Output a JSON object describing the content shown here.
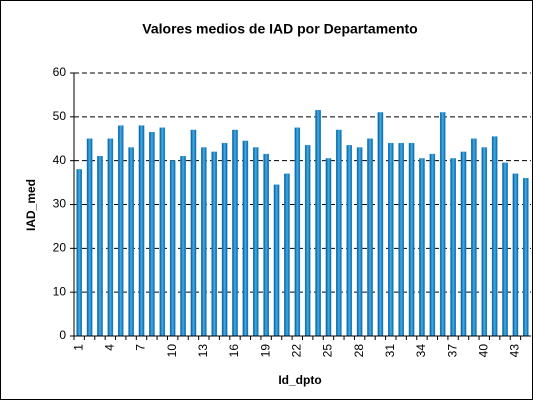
{
  "chart_data": {
    "type": "bar",
    "title": "Valores medios de IAD por Departamento",
    "xlabel": "Id_dpto",
    "ylabel": "IAD_med",
    "categories": [
      "1",
      null,
      null,
      "4",
      null,
      null,
      "7",
      null,
      null,
      "10",
      null,
      null,
      "13",
      null,
      null,
      "16",
      null,
      null,
      "19",
      null,
      null,
      "22",
      null,
      null,
      "25",
      null,
      null,
      "28",
      null,
      null,
      "31",
      null,
      null,
      "34",
      null,
      null,
      "37",
      null,
      null,
      "40",
      null,
      null,
      "43",
      null
    ],
    "values": [
      38,
      45,
      41,
      45,
      48,
      43,
      48,
      46.5,
      47.5,
      40,
      41,
      47,
      43,
      42,
      44,
      47,
      44.5,
      43,
      41.5,
      34.5,
      37,
      47.5,
      43.5,
      51.5,
      40.5,
      47,
      43.5,
      43,
      45,
      51,
      44,
      44,
      44,
      40.5,
      41.5,
      51,
      40.5,
      42,
      45,
      43,
      45.5,
      39.5,
      37,
      36
    ],
    "color": "#1f8fd0",
    "ylim": [
      0,
      60
    ],
    "yticks": [
      0,
      10,
      20,
      30,
      40,
      50,
      60
    ],
    "grid": true
  }
}
